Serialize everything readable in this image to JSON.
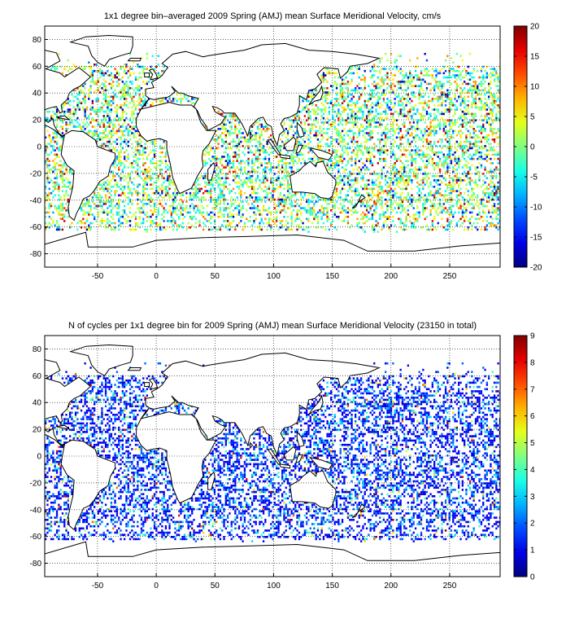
{
  "colors": {
    "land_fill": "#ffffff",
    "coast_stroke": "#000000",
    "grid": "#000000",
    "frame": "#000000"
  },
  "chart_data": [
    {
      "type": "heatmap",
      "title": "1x1 degree bin–averaged 2009 Spring (AMJ) mean Surface Meridional Velocity, cm/s",
      "xlabel": "",
      "ylabel": "",
      "xlim": [
        -95,
        293
      ],
      "ylim": [
        -90,
        90
      ],
      "xticks": [
        -50,
        0,
        50,
        100,
        150,
        200,
        250
      ],
      "yticks": [
        -80,
        -60,
        -40,
        -20,
        0,
        20,
        40,
        60,
        80
      ],
      "grid": true,
      "colormap": "jet",
      "colorbar": {
        "min": -20,
        "max": 20,
        "ticks": [
          -20,
          -15,
          -10,
          -5,
          0,
          5,
          10,
          15,
          20
        ],
        "placement": "right"
      },
      "value_distribution": "scattered 1x1 degree ocean bins, values mostly near 0 with extremes up to ±20 cm/s"
    },
    {
      "type": "heatmap",
      "title": "N of cycles per 1x1 degree bin for 2009 Spring (AMJ) mean Surface Meridional Velocity (23150 in total)",
      "xlabel": "",
      "ylabel": "",
      "xlim": [
        -95,
        293
      ],
      "ylim": [
        -90,
        90
      ],
      "xticks": [
        -50,
        0,
        50,
        100,
        150,
        200,
        250
      ],
      "yticks": [
        -80,
        -60,
        -40,
        -20,
        0,
        20,
        40,
        60,
        80
      ],
      "grid": true,
      "colormap": "jet",
      "colorbar": {
        "min": 0,
        "max": 9,
        "ticks": [
          0,
          1,
          2,
          3,
          4,
          5,
          6,
          7,
          8,
          9
        ],
        "placement": "right"
      },
      "value_distribution": "scattered 1x1 degree ocean bins, mostly 1–2 cycles, a few up to 9"
    }
  ]
}
